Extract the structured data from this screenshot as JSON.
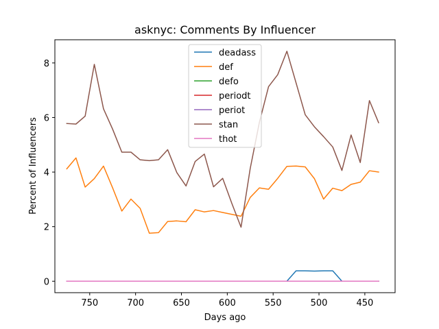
{
  "chart_data": {
    "type": "line",
    "title": "asknyc: Comments By Influencer",
    "xlabel": "Days ago",
    "ylabel": "Percent of Influencers",
    "xlim": [
      788,
      417
    ],
    "ylim": [
      -0.42,
      8.85
    ],
    "x_inverted": true,
    "grid": false,
    "legend_placement": "upper center",
    "xticks": [
      750,
      700,
      650,
      600,
      550,
      500,
      450
    ],
    "yticks": [
      0,
      2,
      4,
      6,
      8
    ],
    "x": [
      775,
      765,
      755,
      745,
      735,
      725,
      715,
      705,
      695,
      685,
      675,
      665,
      655,
      645,
      635,
      625,
      615,
      605,
      595,
      585,
      575,
      565,
      555,
      545,
      535,
      525,
      515,
      505,
      495,
      485,
      475,
      465,
      455,
      445,
      435
    ],
    "series": [
      {
        "name": "deadass",
        "color": "#1f77b4",
        "values": [
          0,
          0,
          0,
          0,
          0,
          0,
          0,
          0,
          0,
          0,
          0,
          0,
          0,
          0,
          0,
          0,
          0,
          0,
          0,
          0,
          0,
          0,
          0,
          0,
          0,
          0.38,
          0.38,
          0.37,
          0.38,
          0.38,
          0,
          0,
          0,
          0,
          0
        ]
      },
      {
        "name": "def",
        "color": "#ff7f0e",
        "values": [
          4.12,
          4.52,
          3.45,
          3.76,
          4.22,
          3.42,
          2.57,
          3.01,
          2.67,
          1.76,
          1.78,
          2.19,
          2.21,
          2.18,
          2.62,
          2.54,
          2.59,
          2.52,
          2.45,
          2.38,
          3.07,
          3.42,
          3.37,
          3.77,
          4.21,
          4.22,
          4.19,
          3.76,
          3.01,
          3.41,
          3.32,
          3.55,
          3.63,
          4.05,
          4.0
        ]
      },
      {
        "name": "defo",
        "color": "#2ca02c",
        "values": [
          0,
          0,
          0,
          0,
          0,
          0,
          0,
          0,
          0,
          0,
          0,
          0,
          0,
          0,
          0,
          0,
          0,
          0,
          0,
          0,
          0,
          0,
          0,
          0,
          0,
          0,
          0,
          0,
          0,
          0,
          0,
          0,
          0,
          0,
          0
        ]
      },
      {
        "name": "periodt",
        "color": "#d62728",
        "values": [
          0,
          0,
          0,
          0,
          0,
          0,
          0,
          0,
          0,
          0,
          0,
          0,
          0,
          0,
          0,
          0,
          0,
          0,
          0,
          0,
          0,
          0,
          0,
          0,
          0,
          0,
          0,
          0,
          0,
          0,
          0,
          0,
          0,
          0,
          0
        ]
      },
      {
        "name": "periot",
        "color": "#9467bd",
        "values": [
          0,
          0,
          0,
          0,
          0,
          0,
          0,
          0,
          0,
          0,
          0,
          0,
          0,
          0,
          0,
          0,
          0,
          0,
          0,
          0,
          0,
          0,
          0,
          0,
          0,
          0,
          0,
          0,
          0,
          0,
          0,
          0,
          0,
          0,
          0
        ]
      },
      {
        "name": "stan",
        "color": "#8c564b",
        "values": [
          5.78,
          5.76,
          6.05,
          7.95,
          6.32,
          5.57,
          4.73,
          4.73,
          4.45,
          4.42,
          4.45,
          4.82,
          3.98,
          3.49,
          4.39,
          4.66,
          3.46,
          3.77,
          2.85,
          1.98,
          4.13,
          5.82,
          7.13,
          7.57,
          8.43,
          7.27,
          6.1,
          5.66,
          5.3,
          4.92,
          4.06,
          5.36,
          4.35,
          6.62,
          5.81
        ]
      },
      {
        "name": "thot",
        "color": "#e377c2",
        "values": [
          0,
          0,
          0,
          0,
          0,
          0,
          0,
          0,
          0,
          0,
          0,
          0,
          0,
          0,
          0,
          0,
          0,
          0,
          0,
          0,
          0,
          0,
          0,
          0,
          0,
          0,
          0,
          0,
          0,
          0,
          0,
          0,
          0,
          0,
          0
        ]
      }
    ]
  }
}
